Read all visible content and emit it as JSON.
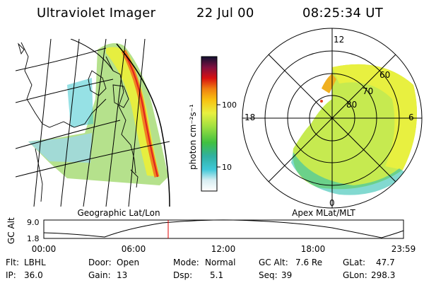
{
  "header": {
    "instrument": "Ultraviolet Imager",
    "date": "22 Jul 00",
    "time": "08:25:34 UT"
  },
  "colorbar": {
    "unit_label": "photon cm⁻²s⁻¹",
    "ticks": [
      "100",
      "10"
    ]
  },
  "left_panel": {
    "caption": "Geographic Lat/Lon"
  },
  "right_panel": {
    "caption": "Apex MLat/MLT",
    "mlt_labels": [
      "12",
      "18",
      "6",
      "0"
    ],
    "mlat_labels": [
      "60",
      "70",
      "80"
    ]
  },
  "altitude_plot": {
    "ylabel": "GC Alt",
    "y_ticks": [
      "9.0",
      "1.8"
    ],
    "x_ticks": [
      "00:00",
      "06:00",
      "12:00",
      "18:00",
      "23:59"
    ]
  },
  "info": {
    "flt_label": "Flt:",
    "flt_value": "LBHL",
    "ip_label": "IP:",
    "ip_value": "36.0",
    "door_label": "Door:",
    "door_value": "Open",
    "gain_label": "Gain:",
    "gain_value": "13",
    "mode_label": "Mode:",
    "mode_value": "Normal",
    "dsp_label": "Dsp:",
    "dsp_value": "5.1",
    "gcalt_label": "GC Alt:",
    "gcalt_value": "7.6 Re",
    "seq_label": "Seq:",
    "seq_value": "39",
    "glat_label": "GLat:",
    "glat_value": "47.7",
    "glon_label": "GLon:",
    "glon_value": "298.3"
  },
  "colors": {
    "marker": "#e00000"
  }
}
